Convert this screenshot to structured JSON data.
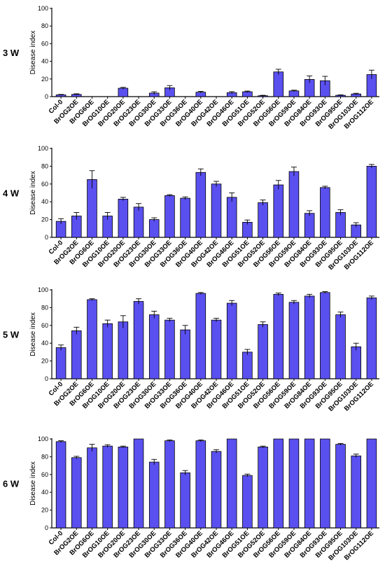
{
  "chart_data": [
    {
      "type": "bar",
      "panel_label": "3 W",
      "ylabel": "Disease index",
      "ylim": [
        0,
        100
      ],
      "yticks": [
        "0",
        "20",
        "40",
        "60",
        "80",
        "100"
      ],
      "bar_color": "#5a50f0",
      "categories": [
        "Col-0",
        "BrOG2OE",
        "BrOG6OE",
        "BrOG10OE",
        "BrOG20OE",
        "BrOG23OE",
        "BrOG30OE",
        "BrOG33OE",
        "BrOG36OE",
        "BrOG40OE",
        "BrOG42OE",
        "BrOG46OE",
        "BrOG51OE",
        "BrOG52OE",
        "BrOG56OE",
        "BrOG59OE",
        "BrOG84OE",
        "BrOG93OE",
        "BrOG95OE",
        "BrOG103OE",
        "BrOG112OE"
      ],
      "values": [
        2,
        2.5,
        0,
        0,
        9.5,
        0,
        4,
        10,
        0,
        5,
        0,
        4.5,
        5.5,
        1,
        28,
        6.5,
        19.5,
        18,
        1.5,
        3,
        25
      ],
      "errors": [
        0.5,
        0.7,
        0,
        0,
        1,
        0,
        1.5,
        2.5,
        0,
        1,
        0,
        1.2,
        0.8,
        0.5,
        3,
        0.8,
        4,
        5,
        0.5,
        0.8,
        5
      ]
    },
    {
      "type": "bar",
      "panel_label": "4 W",
      "ylabel": "Disease index",
      "ylim": [
        0,
        100
      ],
      "yticks": [
        "0",
        "20",
        "40",
        "60",
        "80",
        "100"
      ],
      "bar_color": "#5a50f0",
      "categories": [
        "Col-0",
        "BrOG2OE",
        "BrOG6OE",
        "BrOG10OE",
        "BrOG20OE",
        "BrOG23OE",
        "BrOG30OE",
        "BrOG33OE",
        "BrOG36OE",
        "BrOG40OE",
        "BrOG42OE",
        "BrOG46OE",
        "BrOG51OE",
        "BrOG52OE",
        "BrOG56OE",
        "BrOG59OE",
        "BrOG84OE",
        "BrOG93OE",
        "BrOG95OE",
        "BrOG103OE",
        "BrOG112OE"
      ],
      "values": [
        18,
        24,
        65,
        24,
        43,
        34,
        20,
        47,
        44,
        73,
        60,
        45,
        17,
        39,
        59,
        74,
        27,
        56,
        28,
        14,
        80
      ],
      "errors": [
        3,
        4,
        10,
        4,
        2,
        4,
        2,
        1,
        1.5,
        4,
        3,
        5,
        2.5,
        3,
        5,
        5,
        3,
        1.5,
        3,
        2.5,
        2
      ]
    },
    {
      "type": "bar",
      "panel_label": "5 W",
      "ylabel": "Disease index",
      "ylim": [
        0,
        100
      ],
      "yticks": [
        "0",
        "20",
        "40",
        "60",
        "80",
        "100"
      ],
      "bar_color": "#5a50f0",
      "categories": [
        "Col-0",
        "BrOG2OE",
        "BrOG6OE",
        "BrOG10OE",
        "BrOG20OE",
        "BrOG23OE",
        "BrOG30OE",
        "BrOG33OE",
        "BrOG36OE",
        "BrOG40OE",
        "BrOG42OE",
        "BrOG46OE",
        "BrOG51OE",
        "BrOG52OE",
        "BrOG56OE",
        "BrOG59OE",
        "BrOG84OE",
        "BrOG93OE",
        "BrOG95OE",
        "BrOG103OE",
        "BrOG112OE"
      ],
      "values": [
        35,
        54,
        89,
        62,
        64,
        87,
        72,
        66,
        55,
        96,
        66,
        85,
        30,
        61,
        95,
        86,
        93,
        97,
        72,
        36,
        91
      ],
      "errors": [
        3,
        4,
        1,
        4,
        7,
        3,
        4,
        2,
        5,
        1,
        2,
        3,
        3,
        3,
        1.5,
        2,
        2,
        1,
        3,
        4,
        2
      ]
    },
    {
      "type": "bar",
      "panel_label": "6 W",
      "ylabel": "Disease index",
      "ylim": [
        0,
        100
      ],
      "yticks": [
        "0",
        "20",
        "40",
        "60",
        "80",
        "100"
      ],
      "bar_color": "#5a50f0",
      "categories": [
        "Col-0",
        "BrOG2OE",
        "BrOG6OE",
        "BrOG10OE",
        "BrOG20OE",
        "BrOG23OE",
        "BrOG30OE",
        "BrOG33OE",
        "BrOG36OE",
        "BrOG40OE",
        "BrOG42OE",
        "BrOG46OE",
        "BrOG51OE",
        "BrOG52OE",
        "BrOG56OE",
        "BrOG59OE",
        "BrOG84OE",
        "BrOG93OE",
        "BrOG95OE",
        "BrOG103OE",
        "BrOG112OE"
      ],
      "values": [
        97,
        79,
        90,
        92,
        91,
        100,
        74,
        98,
        62,
        98,
        86,
        100,
        59,
        91,
        100,
        100,
        100,
        100,
        94,
        81,
        100
      ],
      "errors": [
        1,
        1.5,
        4,
        1.5,
        1,
        0,
        3,
        1,
        2.5,
        1,
        2,
        0,
        1.5,
        1,
        0,
        0,
        0,
        0,
        1,
        2,
        0
      ]
    }
  ]
}
